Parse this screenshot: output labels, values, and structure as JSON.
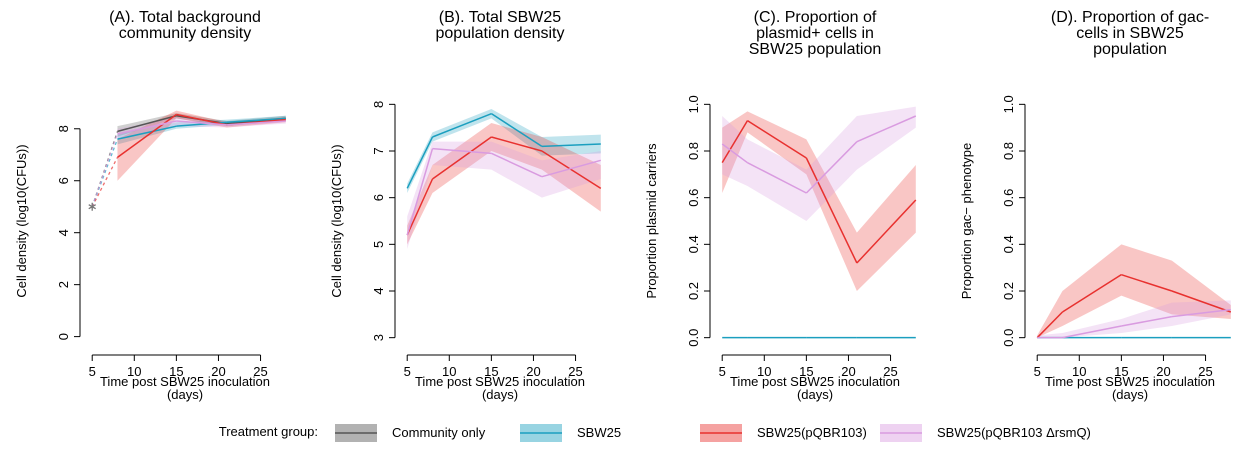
{
  "legend_title": "Treatment group:",
  "chart_data": [
    {
      "type": "line",
      "title": [
        "(A). Total background",
        "community density"
      ],
      "x_label": [
        "Time post SBW25 inoculation",
        "(days)"
      ],
      "y_label": "Cell density (log10(CFUs))",
      "x": [
        5,
        8,
        15,
        21,
        28
      ],
      "xlim": [
        4.5,
        28.5
      ],
      "xticks": [
        5,
        10,
        15,
        20,
        25
      ],
      "ylim": [
        -0.4,
        9.3
      ],
      "yticks": [
        0,
        2,
        4,
        6,
        8
      ],
      "first_segment_dashed": true,
      "start_marker": "asterisk",
      "series": [
        {
          "name": "Community only",
          "color": "#555555",
          "values": [
            5,
            7.9,
            8.5,
            8.2,
            8.4
          ],
          "lower": [
            null,
            7.7,
            8.4,
            8.1,
            8.3
          ],
          "upper": [
            null,
            8.1,
            8.6,
            8.3,
            8.5
          ]
        },
        {
          "name": "SBW25",
          "color": "#1b9fbf",
          "values": [
            5,
            7.6,
            8.1,
            8.25,
            8.4
          ],
          "lower": [
            null,
            7.4,
            8.0,
            8.15,
            8.3
          ],
          "upper": [
            null,
            7.8,
            8.25,
            8.35,
            8.5
          ]
        },
        {
          "name": "SBW25(pQBR103)",
          "color": "#e8312f",
          "values": [
            5,
            6.9,
            8.55,
            8.15,
            8.35
          ],
          "lower": [
            null,
            6.0,
            8.4,
            8.05,
            8.25
          ],
          "upper": [
            null,
            7.6,
            8.7,
            8.25,
            8.45
          ]
        },
        {
          "name": "SBW25(pQBR103 ΔrsmQ)",
          "color": "#d99be0",
          "values": [
            5,
            7.8,
            8.3,
            8.15,
            8.3
          ],
          "lower": [
            null,
            7.6,
            8.1,
            8.05,
            8.2
          ],
          "upper": [
            null,
            8.0,
            8.45,
            8.25,
            8.4
          ]
        }
      ]
    },
    {
      "type": "line",
      "title": [
        "(B). Total SBW25",
        "population density"
      ],
      "x_label": [
        "Time post SBW25 inoculation",
        "(days)"
      ],
      "y_label": "Cell density (log10(CFUs))",
      "x": [
        5,
        8,
        15,
        21,
        28
      ],
      "xlim": [
        4.5,
        28.5
      ],
      "xticks": [
        5,
        10,
        15,
        20,
        25
      ],
      "ylim": [
        2.8,
        8.2
      ],
      "yticks": [
        3,
        4,
        5,
        6,
        7,
        8
      ],
      "series": [
        {
          "name": "SBW25",
          "color": "#1b9fbf",
          "values": [
            6.2,
            7.3,
            7.8,
            7.1,
            7.15
          ],
          "lower": [
            6.1,
            7.2,
            7.7,
            6.9,
            6.95
          ],
          "upper": [
            6.3,
            7.4,
            7.9,
            7.3,
            7.35
          ]
        },
        {
          "name": "SBW25(pQBR103)",
          "color": "#e8312f",
          "values": [
            5.2,
            6.4,
            7.3,
            7.0,
            6.2
          ],
          "lower": [
            5.0,
            6.1,
            7.0,
            6.6,
            5.7
          ],
          "upper": [
            5.4,
            6.7,
            7.6,
            7.3,
            6.7
          ]
        },
        {
          "name": "SBW25(pQBR103 ΔrsmQ)",
          "color": "#d99be0",
          "values": [
            5.2,
            7.05,
            6.95,
            6.45,
            6.8
          ],
          "lower": [
            4.9,
            6.7,
            6.6,
            6.0,
            6.4
          ],
          "upper": [
            5.6,
            7.2,
            7.2,
            6.8,
            7.0
          ]
        }
      ]
    },
    {
      "type": "line",
      "title": [
        "(C). Proportion of",
        "plasmid+ cells in",
        "SBW25 population"
      ],
      "x_label": [
        "Time post SBW25 inoculation",
        "(days)"
      ],
      "y_label": "Proportion plasmid carriers",
      "x": [
        5,
        8,
        15,
        21,
        28
      ],
      "xlim": [
        4.5,
        28.5
      ],
      "xticks": [
        5,
        10,
        15,
        20,
        25
      ],
      "ylim": [
        -0.04,
        1.04
      ],
      "yticks": [
        {
          "value": 0,
          "label": "0.0"
        },
        0.2,
        0.4,
        0.6,
        0.8,
        {
          "value": 1,
          "label": "1.0"
        }
      ],
      "series": [
        {
          "name": "SBW25",
          "color": "#1b9fbf",
          "values": [
            0,
            0,
            0,
            0,
            0
          ],
          "lower": [
            0,
            0,
            0,
            0,
            0
          ],
          "upper": [
            0,
            0,
            0,
            0,
            0
          ]
        },
        {
          "name": "SBW25(pQBR103)",
          "color": "#e8312f",
          "values": [
            0.75,
            0.93,
            0.77,
            0.32,
            0.59
          ],
          "lower": [
            0.62,
            0.88,
            0.7,
            0.2,
            0.45
          ],
          "upper": [
            0.9,
            0.97,
            0.85,
            0.45,
            0.74
          ]
        },
        {
          "name": "SBW25(pQBR103 ΔrsmQ)",
          "color": "#d99be0",
          "values": [
            0.83,
            0.75,
            0.62,
            0.84,
            0.95
          ],
          "lower": [
            0.7,
            0.65,
            0.5,
            0.72,
            0.9
          ],
          "upper": [
            0.95,
            0.85,
            0.72,
            0.95,
            0.99
          ]
        }
      ]
    },
    {
      "type": "line",
      "title": [
        "(D). Proportion of gac-",
        "cells in SBW25",
        "population"
      ],
      "x_label": [
        "Time post SBW25 inoculation",
        "(days)"
      ],
      "y_label": "Proportion gac− phenotype",
      "x": [
        5,
        8,
        15,
        21,
        28
      ],
      "xlim": [
        4.5,
        28.5
      ],
      "xticks": [
        5,
        10,
        15,
        20,
        25
      ],
      "ylim": [
        -0.04,
        1.04
      ],
      "yticks": [
        {
          "value": 0,
          "label": "0.0"
        },
        0.2,
        0.4,
        0.6,
        0.8,
        {
          "value": 1,
          "label": "1.0"
        }
      ],
      "series": [
        {
          "name": "SBW25",
          "color": "#1b9fbf",
          "values": [
            0,
            0,
            0,
            0,
            0
          ],
          "lower": [
            0,
            0,
            0,
            0,
            0
          ],
          "upper": [
            0,
            0,
            0,
            0,
            0
          ]
        },
        {
          "name": "SBW25(pQBR103)",
          "color": "#e8312f",
          "values": [
            0.0,
            0.11,
            0.27,
            0.2,
            0.11
          ],
          "lower": [
            0,
            0.05,
            0.18,
            0.1,
            0.08
          ],
          "upper": [
            0.01,
            0.2,
            0.4,
            0.33,
            0.14
          ]
        },
        {
          "name": "SBW25(pQBR103 ΔrsmQ)",
          "color": "#d99be0",
          "values": [
            0.0,
            0.0,
            0.05,
            0.09,
            0.12
          ],
          "lower": [
            0,
            0,
            0.02,
            0.05,
            0.1
          ],
          "upper": [
            0.01,
            0.02,
            0.08,
            0.15,
            0.16
          ]
        }
      ]
    }
  ]
}
